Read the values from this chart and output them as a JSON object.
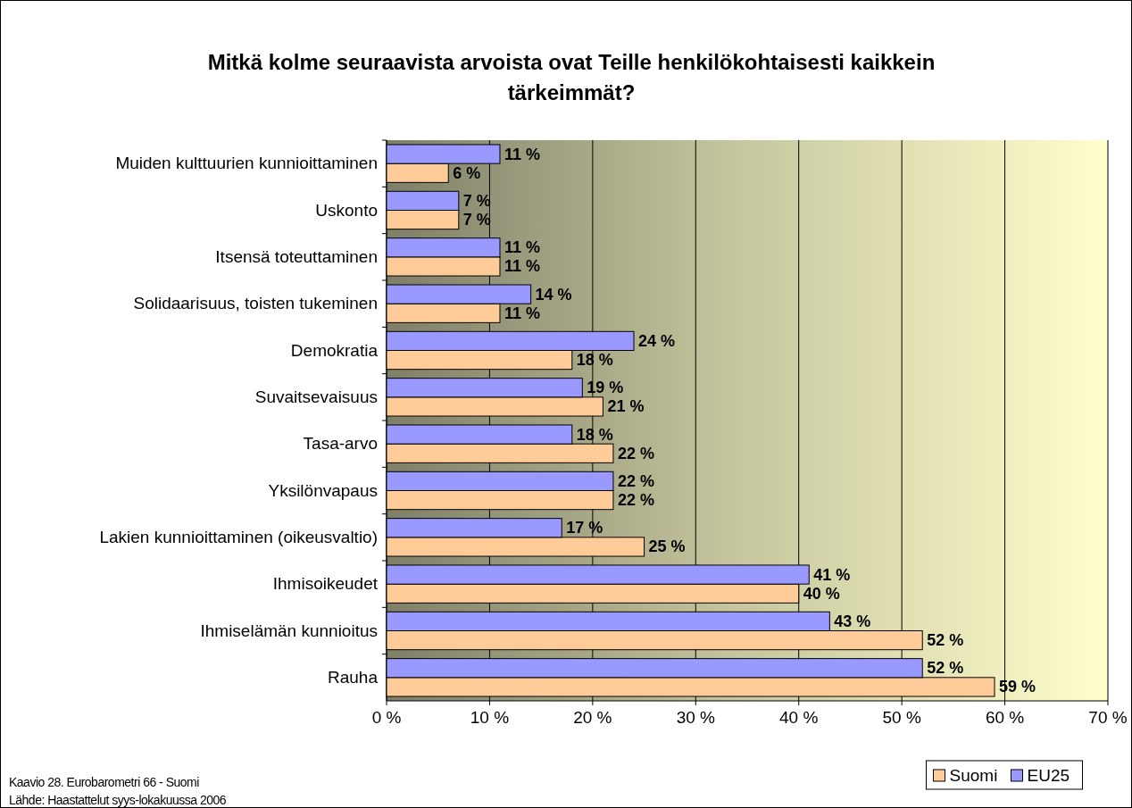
{
  "chart_data": {
    "type": "bar",
    "orientation": "horizontal",
    "title": "Mitkä kolme seuraavista arvoista ovat Teille henkilökohtaisesti kaikkein tärkeimmät?",
    "categories": [
      "Muiden kulttuurien kunnioittaminen",
      "Uskonto",
      "Itsensä toteuttaminen",
      "Solidaarisuus, toisten tukeminen",
      "Demokratia",
      "Suvaitsevaisuus",
      "Tasa-arvo",
      "Yksilönvapaus",
      "Lakien kunnioittaminen (oikeusvaltio)",
      "Ihmisoikeudet",
      "Ihmiselämän kunnioitus",
      "Rauha"
    ],
    "series": [
      {
        "name": "Suomi",
        "color": "#ffcc99",
        "values": [
          6,
          7,
          11,
          11,
          18,
          21,
          22,
          22,
          25,
          40,
          52,
          59
        ],
        "value_labels": [
          "6 %",
          "7 %",
          "11 %",
          "11 %",
          "18 %",
          "21 %",
          "22 %",
          "22 %",
          "25 %",
          "40 %",
          "52 %",
          "59 %"
        ]
      },
      {
        "name": "EU25",
        "color": "#9999ff",
        "values": [
          11,
          7,
          11,
          14,
          24,
          19,
          18,
          22,
          17,
          41,
          43,
          52
        ],
        "value_labels": [
          "11 %",
          "7 %",
          "11 %",
          "14 %",
          "24 %",
          "19 %",
          "18 %",
          "22 %",
          "17 %",
          "41 %",
          "43 %",
          "52 %"
        ]
      }
    ],
    "xlim": [
      0,
      70
    ],
    "xticks": [
      {
        "value": 0,
        "label": "0 %"
      },
      {
        "value": 10,
        "label": "10 %"
      },
      {
        "value": 20,
        "label": "20 %"
      },
      {
        "value": 30,
        "label": "30 %"
      },
      {
        "value": 40,
        "label": "40 %"
      },
      {
        "value": 50,
        "label": "50 %"
      },
      {
        "value": 60,
        "label": "60 %"
      },
      {
        "value": 70,
        "label": "70 %"
      }
    ],
    "grid": "x",
    "legend": "bottom right",
    "annotations": [
      "Kaavio 28. Eurobarometri 66 - Suomi",
      "Lähde: Haastattelut syys-lokakuussa 2006"
    ]
  }
}
